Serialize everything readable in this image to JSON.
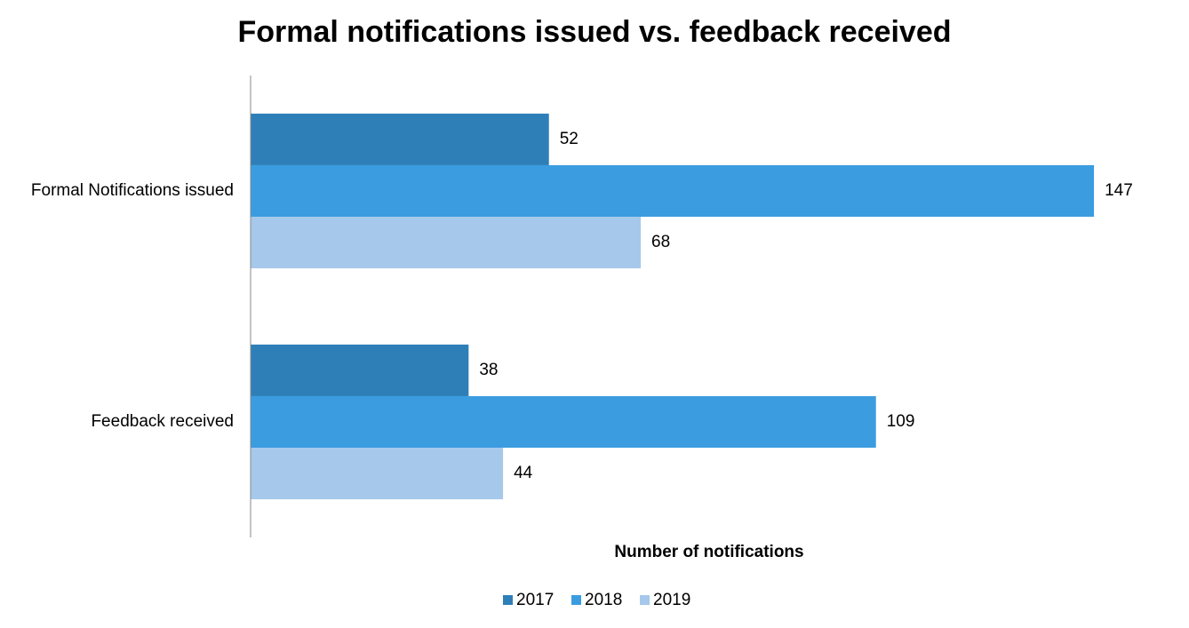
{
  "chart_data": {
    "type": "bar",
    "orientation": "horizontal",
    "title": "Formal notifications issued vs. feedback received",
    "x_label": "Number of notifications",
    "categories": [
      "Formal Notifications issued",
      "Feedback received"
    ],
    "series": [
      {
        "name": "2017",
        "color": "#2e7fb8",
        "values": [
          52,
          38
        ]
      },
      {
        "name": "2018",
        "color": "#3b9ce0",
        "values": [
          147,
          109
        ]
      },
      {
        "name": "2019",
        "color": "#a6c8eb",
        "values": [
          68,
          44
        ]
      }
    ],
    "xlim": [
      0,
      160
    ],
    "grid": false,
    "legend": "bottom"
  }
}
